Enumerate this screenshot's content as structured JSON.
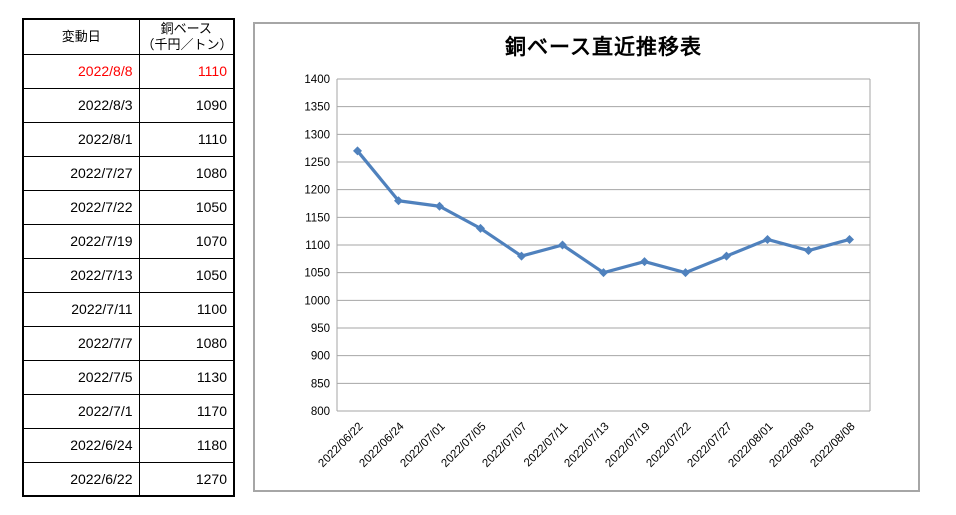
{
  "table": {
    "header": {
      "date_label": "変動日",
      "value_label_line1": "銅ベース",
      "value_label_line2": "（千円／トン）"
    },
    "rows": [
      {
        "date": "2022/8/8",
        "value": "1110",
        "highlight": true
      },
      {
        "date": "2022/8/3",
        "value": "1090",
        "highlight": false
      },
      {
        "date": "2022/8/1",
        "value": "1110",
        "highlight": false
      },
      {
        "date": "2022/7/27",
        "value": "1080",
        "highlight": false
      },
      {
        "date": "2022/7/22",
        "value": "1050",
        "highlight": false
      },
      {
        "date": "2022/7/19",
        "value": "1070",
        "highlight": false
      },
      {
        "date": "2022/7/13",
        "value": "1050",
        "highlight": false
      },
      {
        "date": "2022/7/11",
        "value": "1100",
        "highlight": false
      },
      {
        "date": "2022/7/7",
        "value": "1080",
        "highlight": false
      },
      {
        "date": "2022/7/5",
        "value": "1130",
        "highlight": false
      },
      {
        "date": "2022/7/1",
        "value": "1170",
        "highlight": false
      },
      {
        "date": "2022/6/24",
        "value": "1180",
        "highlight": false
      },
      {
        "date": "2022/6/22",
        "value": "1270",
        "highlight": false
      }
    ],
    "highlight_color": "#ff0000"
  },
  "chart_data": {
    "type": "line",
    "title": "銅ベース直近推移表",
    "categories": [
      "2022/06/22",
      "2022/06/24",
      "2022/07/01",
      "2022/07/05",
      "2022/07/07",
      "2022/07/11",
      "2022/07/13",
      "2022/07/19",
      "2022/07/22",
      "2022/07/27",
      "2022/08/01",
      "2022/08/03",
      "2022/08/08"
    ],
    "values": [
      1270,
      1180,
      1170,
      1130,
      1080,
      1100,
      1050,
      1070,
      1050,
      1080,
      1110,
      1090,
      1110
    ],
    "xlabel": "",
    "ylabel": "",
    "ylim": [
      800,
      1400
    ],
    "ytick_step": 50,
    "grid": true,
    "legend": "none",
    "marker": "diamond",
    "line_color": "#4f81bd",
    "grid_color": "#a6a6a6",
    "label_color": "#000000"
  }
}
